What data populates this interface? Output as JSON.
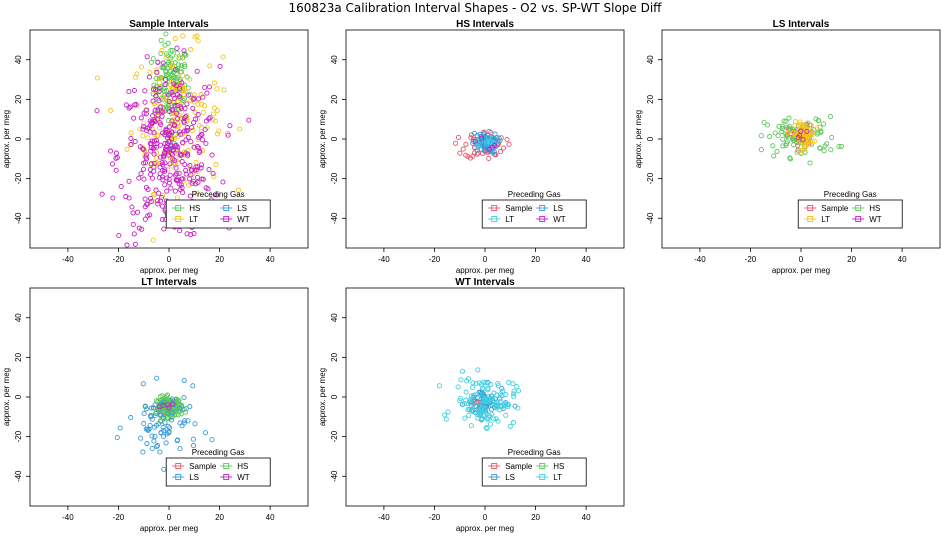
{
  "figure": {
    "title": "160823a   Calibration Interval Shapes - O2 vs. SP-WT Slope Diff"
  },
  "chart_data": [
    {
      "type": "scatter",
      "title": "Sample Intervals",
      "xlabel": "approx. per meg",
      "ylabel": "approx. per meg",
      "xlim": [
        -55,
        55
      ],
      "ylim": [
        -55,
        55
      ],
      "xticks": [
        "-40",
        "-20",
        "0",
        "20",
        "40"
      ],
      "yticks": [
        "-40",
        "-20",
        "0",
        "20",
        "40"
      ],
      "legend_title": "Preceding Gas",
      "legend_position": "bottom-right",
      "series": [
        {
          "name": "HS",
          "color": "#5ac85a",
          "center": [
            1,
            28
          ],
          "spread": [
            3.5,
            10
          ],
          "n": 130
        },
        {
          "name": "LS",
          "color": "#3a9ad9",
          "center": [
            0,
            0
          ],
          "spread": [
            2,
            4
          ],
          "n": 8
        },
        {
          "name": "LT",
          "color": "#f5c518",
          "center": [
            3,
            10
          ],
          "spread": [
            9,
            18
          ],
          "n": 180
        },
        {
          "name": "WT",
          "color": "#c81fc8",
          "center": [
            0,
            -8
          ],
          "spread": [
            10,
            22
          ],
          "n": 350
        }
      ]
    },
    {
      "type": "scatter",
      "title": "HS Intervals",
      "xlabel": "approx. per meg",
      "ylabel": "approx. per meg",
      "xlim": [
        -55,
        55
      ],
      "ylim": [
        -55,
        55
      ],
      "xticks": [
        "-40",
        "-20",
        "0",
        "20",
        "40"
      ],
      "yticks": [
        "-40",
        "-20",
        "0",
        "20",
        "40"
      ],
      "legend_title": "Preceding Gas",
      "legend_position": "bottom-right",
      "series": [
        {
          "name": "Sample",
          "color": "#e8566b",
          "center": [
            0,
            -3
          ],
          "spread": [
            4,
            3.5
          ],
          "n": 60
        },
        {
          "name": "LS",
          "color": "#3a9ad9",
          "center": [
            0,
            -2
          ],
          "spread": [
            2.5,
            2.5
          ],
          "n": 80
        },
        {
          "name": "LT",
          "color": "#3fd0e0",
          "center": [
            0,
            -2
          ],
          "spread": [
            2,
            2
          ],
          "n": 10
        },
        {
          "name": "WT",
          "color": "#c81fc8",
          "center": [
            0,
            -2
          ],
          "spread": [
            2,
            2
          ],
          "n": 5
        }
      ]
    },
    {
      "type": "scatter",
      "title": "LS Intervals",
      "xlabel": "approx. per meg",
      "ylabel": "approx. per meg",
      "xlim": [
        -55,
        55
      ],
      "ylim": [
        -55,
        55
      ],
      "xticks": [
        "-40",
        "-20",
        "0",
        "20",
        "40"
      ],
      "yticks": [
        "-40",
        "-20",
        "0",
        "20",
        "40"
      ],
      "legend_title": "Preceding Gas",
      "legend_position": "bottom-right",
      "series": [
        {
          "name": "Sample",
          "color": "#e8566b",
          "center": [
            0,
            1
          ],
          "spread": [
            2.5,
            3
          ],
          "n": 40
        },
        {
          "name": "HS",
          "color": "#5ac85a",
          "center": [
            0,
            1
          ],
          "spread": [
            7,
            5
          ],
          "n": 90
        },
        {
          "name": "LT",
          "color": "#f5c518",
          "center": [
            1,
            2
          ],
          "spread": [
            2,
            3
          ],
          "n": 80
        },
        {
          "name": "WT",
          "color": "#c81fc8",
          "center": [
            0,
            1
          ],
          "spread": [
            2,
            2
          ],
          "n": 5
        }
      ]
    },
    {
      "type": "scatter",
      "title": "LT Intervals",
      "xlabel": "approx. per meg",
      "ylabel": "approx. per meg",
      "xlim": [
        -55,
        55
      ],
      "ylim": [
        -55,
        55
      ],
      "xticks": [
        "-40",
        "-20",
        "0",
        "20",
        "40"
      ],
      "yticks": [
        "-40",
        "-20",
        "0",
        "20",
        "40"
      ],
      "legend_title": "Preceding Gas",
      "legend_position": "bottom-right",
      "series": [
        {
          "name": "Sample",
          "color": "#e8566b",
          "center": [
            0,
            -5
          ],
          "spread": [
            2,
            2
          ],
          "n": 15
        },
        {
          "name": "HS",
          "color": "#5ac85a",
          "center": [
            0,
            -5
          ],
          "spread": [
            2.5,
            2.5
          ],
          "n": 150
        },
        {
          "name": "LS",
          "color": "#3a9ad9",
          "center": [
            -2,
            -15
          ],
          "spread": [
            7,
            9
          ],
          "n": 80
        },
        {
          "name": "WT",
          "color": "#c81fc8",
          "center": [
            0,
            -5
          ],
          "spread": [
            1.5,
            1.5
          ],
          "n": 5
        }
      ]
    },
    {
      "type": "scatter",
      "title": "WT Intervals",
      "xlabel": "approx. per meg",
      "ylabel": "approx. per meg",
      "xlim": [
        -55,
        55
      ],
      "ylim": [
        -55,
        55
      ],
      "xticks": [
        "-40",
        "-20",
        "0",
        "20",
        "40"
      ],
      "yticks": [
        "-40",
        "-20",
        "0",
        "20",
        "40"
      ],
      "legend_title": "Preceding Gas",
      "legend_position": "bottom-right",
      "series": [
        {
          "name": "Sample",
          "color": "#e8566b",
          "center": [
            -3,
            -4
          ],
          "spread": [
            2,
            2
          ],
          "n": 12
        },
        {
          "name": "HS",
          "color": "#5ac85a",
          "center": [
            0,
            -3
          ],
          "spread": [
            2,
            2
          ],
          "n": 6
        },
        {
          "name": "LS",
          "color": "#3a9ad9",
          "center": [
            0,
            -3
          ],
          "spread": [
            4,
            4
          ],
          "n": 60
        },
        {
          "name": "LT",
          "color": "#3fd0e0",
          "center": [
            0,
            -2
          ],
          "spread": [
            6,
            6
          ],
          "n": 120
        }
      ]
    }
  ]
}
